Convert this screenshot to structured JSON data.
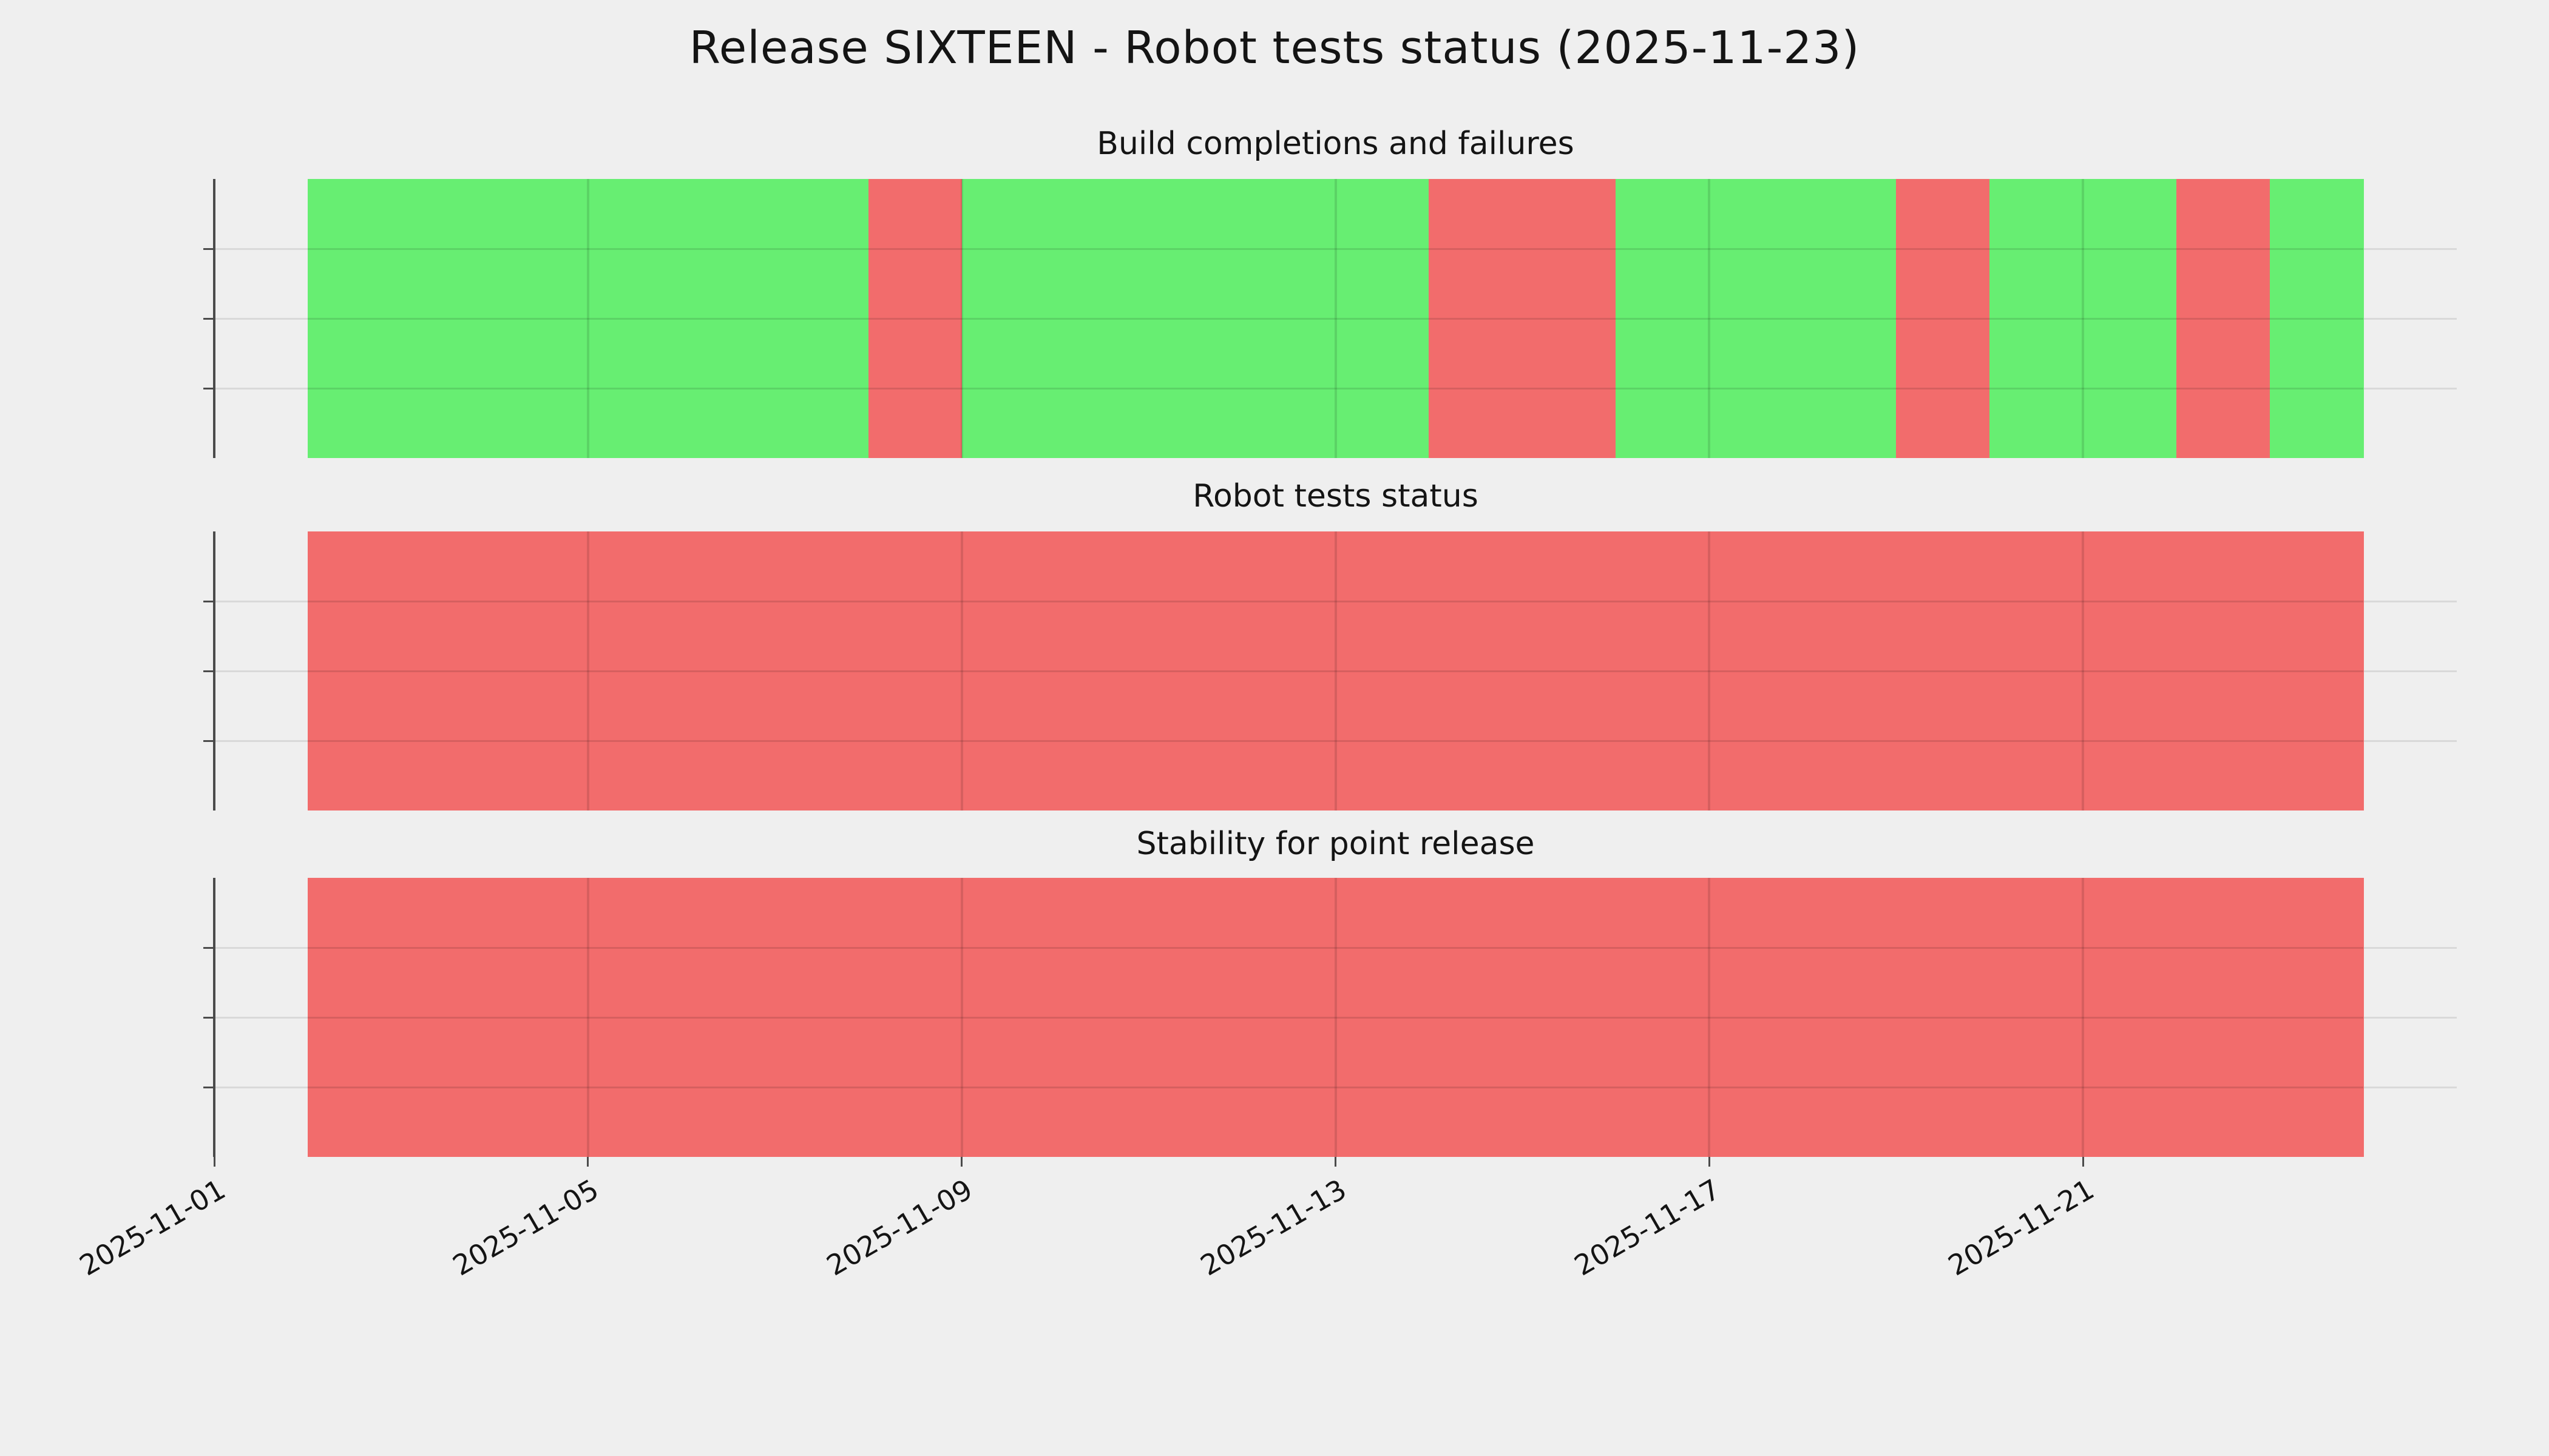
{
  "figure": {
    "title": "Release SIXTEEN - Robot tests status (2025-11-23)",
    "background_color": "#efefef",
    "status_colors": {
      "pass": "#67ee72",
      "fail": "#f26c6c"
    },
    "grid_color_margin": "#d9d9d9",
    "axis_color": "#4b4b4b",
    "text_color": "#141414"
  },
  "x_axis": {
    "tick_labels": [
      "2025-11-01",
      "2025-11-05",
      "2025-11-09",
      "2025-11-13",
      "2025-11-17",
      "2025-11-21"
    ],
    "rotation_deg": 30
  },
  "chart_data": [
    {
      "type": "bar",
      "title": "Build completions and failures",
      "xlim": [
        "2025-11-01",
        "2025-11-25"
      ],
      "ylabel": "",
      "xlabel": "",
      "grid": true,
      "legend_position": "none",
      "bar_width_days": 1,
      "categories": [
        "2025-11-02",
        "2025-11-03",
        "2025-11-04",
        "2025-11-05",
        "2025-11-06",
        "2025-11-07",
        "2025-11-08",
        "2025-11-09",
        "2025-11-10",
        "2025-11-11",
        "2025-11-12",
        "2025-11-13",
        "2025-11-14",
        "2025-11-15",
        "2025-11-16",
        "2025-11-17",
        "2025-11-18",
        "2025-11-19",
        "2025-11-20",
        "2025-11-21",
        "2025-11-22",
        "2025-11-23"
      ],
      "values": [
        "pass",
        "pass",
        "pass",
        "pass",
        "pass",
        "pass",
        "fail",
        "pass",
        "pass",
        "pass",
        "pass",
        "pass",
        "fail",
        "fail",
        "pass",
        "pass",
        "pass",
        "fail",
        "pass",
        "pass",
        "fail",
        "pass"
      ]
    },
    {
      "type": "bar",
      "title": "Robot tests status",
      "xlim": [
        "2025-11-01",
        "2025-11-25"
      ],
      "ylabel": "",
      "xlabel": "",
      "grid": true,
      "legend_position": "none",
      "bar_width_days": 1,
      "categories": [
        "2025-11-02",
        "2025-11-03",
        "2025-11-04",
        "2025-11-05",
        "2025-11-06",
        "2025-11-07",
        "2025-11-08",
        "2025-11-09",
        "2025-11-10",
        "2025-11-11",
        "2025-11-12",
        "2025-11-13",
        "2025-11-14",
        "2025-11-15",
        "2025-11-16",
        "2025-11-17",
        "2025-11-18",
        "2025-11-19",
        "2025-11-20",
        "2025-11-21",
        "2025-11-22",
        "2025-11-23"
      ],
      "values": [
        "fail",
        "fail",
        "fail",
        "fail",
        "fail",
        "fail",
        "fail",
        "fail",
        "fail",
        "fail",
        "fail",
        "fail",
        "fail",
        "fail",
        "fail",
        "fail",
        "fail",
        "fail",
        "fail",
        "fail",
        "fail",
        "fail"
      ]
    },
    {
      "type": "bar",
      "title": "Stability for point release",
      "xlim": [
        "2025-11-01",
        "2025-11-25"
      ],
      "ylabel": "",
      "xlabel": "",
      "grid": true,
      "legend_position": "none",
      "bar_width_days": 1,
      "categories": [
        "2025-11-02",
        "2025-11-03",
        "2025-11-04",
        "2025-11-05",
        "2025-11-06",
        "2025-11-07",
        "2025-11-08",
        "2025-11-09",
        "2025-11-10",
        "2025-11-11",
        "2025-11-12",
        "2025-11-13",
        "2025-11-14",
        "2025-11-15",
        "2025-11-16",
        "2025-11-17",
        "2025-11-18",
        "2025-11-19",
        "2025-11-20",
        "2025-11-21",
        "2025-11-22",
        "2025-11-23"
      ],
      "values": [
        "fail",
        "fail",
        "fail",
        "fail",
        "fail",
        "fail",
        "fail",
        "fail",
        "fail",
        "fail",
        "fail",
        "fail",
        "fail",
        "fail",
        "fail",
        "fail",
        "fail",
        "fail",
        "fail",
        "fail",
        "fail",
        "fail"
      ]
    }
  ]
}
